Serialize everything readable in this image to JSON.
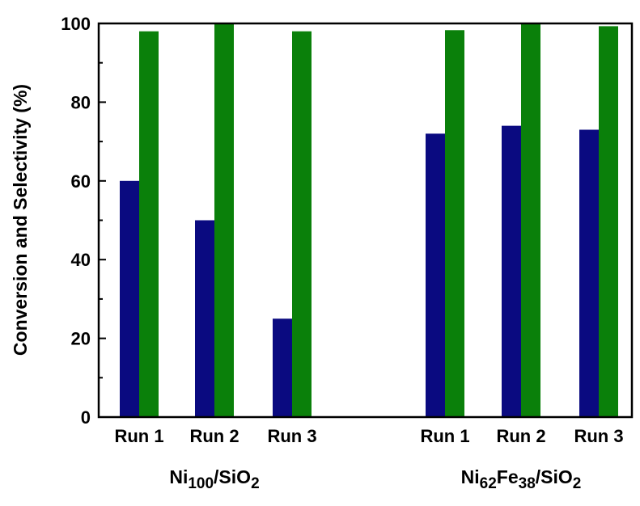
{
  "chart_data": {
    "type": "bar",
    "ylabel": "Conversion and Selectivity (%)",
    "ylim": [
      0,
      100
    ],
    "yticks": [
      "0",
      "20",
      "40",
      "60",
      "80",
      "100"
    ],
    "grid": false,
    "groups": [
      {
        "label_main": "Ni",
        "label_parts": [
          {
            "t": "Ni",
            "sub": false
          },
          {
            "t": "100",
            "sub": true
          },
          {
            "t": "/SiO",
            "sub": false
          },
          {
            "t": "2",
            "sub": true
          }
        ],
        "categories": [
          "Run 1",
          "Run 2",
          "Run 3"
        ],
        "conversion": [
          60,
          50,
          25
        ],
        "selectivity": [
          98,
          100,
          98
        ]
      },
      {
        "label_main": "NiFe",
        "label_parts": [
          {
            "t": "Ni",
            "sub": false
          },
          {
            "t": "62",
            "sub": true
          },
          {
            "t": "Fe",
            "sub": false
          },
          {
            "t": "38",
            "sub": true
          },
          {
            "t": "/SiO",
            "sub": false
          },
          {
            "t": "2",
            "sub": true
          }
        ],
        "categories": [
          "Run 1",
          "Run 2",
          "Run 3"
        ],
        "conversion": [
          72,
          74,
          73
        ],
        "selectivity": [
          98.3,
          100,
          99.3
        ]
      }
    ],
    "colors": {
      "conversion": "#0a0a80",
      "selectivity": "#0a800a"
    }
  }
}
